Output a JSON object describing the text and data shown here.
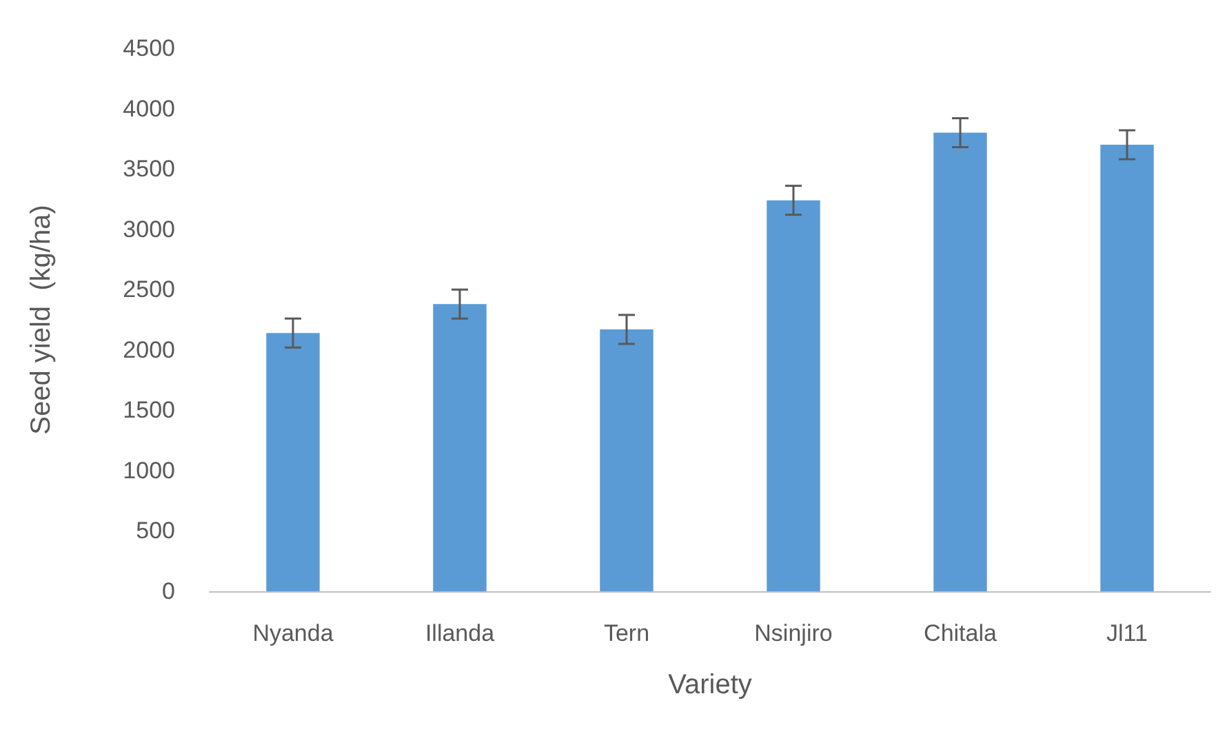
{
  "chart_data": {
    "type": "bar",
    "xlabel": "Variety",
    "ylabel": "Seed yield  (kg/ha)",
    "categories": [
      "Nyanda",
      "Illanda",
      "Tern",
      "Nsinjiro",
      "Chitala",
      "Jl11"
    ],
    "values": [
      2140,
      2380,
      2170,
      3240,
      3800,
      3700
    ],
    "errors": [
      120,
      120,
      120,
      120,
      120,
      120
    ],
    "color": "#5b9bd5",
    "ylim": [
      0,
      4500
    ],
    "yticks": [
      0,
      500,
      1000,
      1500,
      2000,
      2500,
      3000,
      3500,
      4000,
      4500
    ],
    "grid": false
  }
}
